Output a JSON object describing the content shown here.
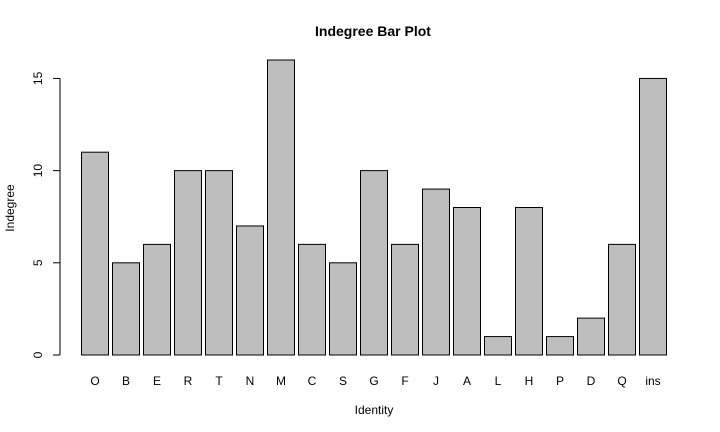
{
  "chart_data": {
    "type": "bar",
    "title": "Indegree Bar Plot",
    "xlabel": "Identity",
    "ylabel": "Indegree",
    "categories": [
      "O",
      "B",
      "E",
      "R",
      "T",
      "N",
      "M",
      "C",
      "S",
      "G",
      "F",
      "J",
      "A",
      "L",
      "H",
      "P",
      "D",
      "Q",
      "ins"
    ],
    "values": [
      11,
      5,
      6,
      10,
      10,
      7,
      16,
      6,
      5,
      10,
      6,
      9,
      8,
      1,
      8,
      1,
      2,
      6,
      15
    ],
    "ylim": [
      0,
      16
    ],
    "yticks": [
      0,
      5,
      10,
      15
    ],
    "grid": false,
    "colors": {
      "bar_fill": "#bebebe",
      "bar_stroke": "#000000"
    }
  }
}
